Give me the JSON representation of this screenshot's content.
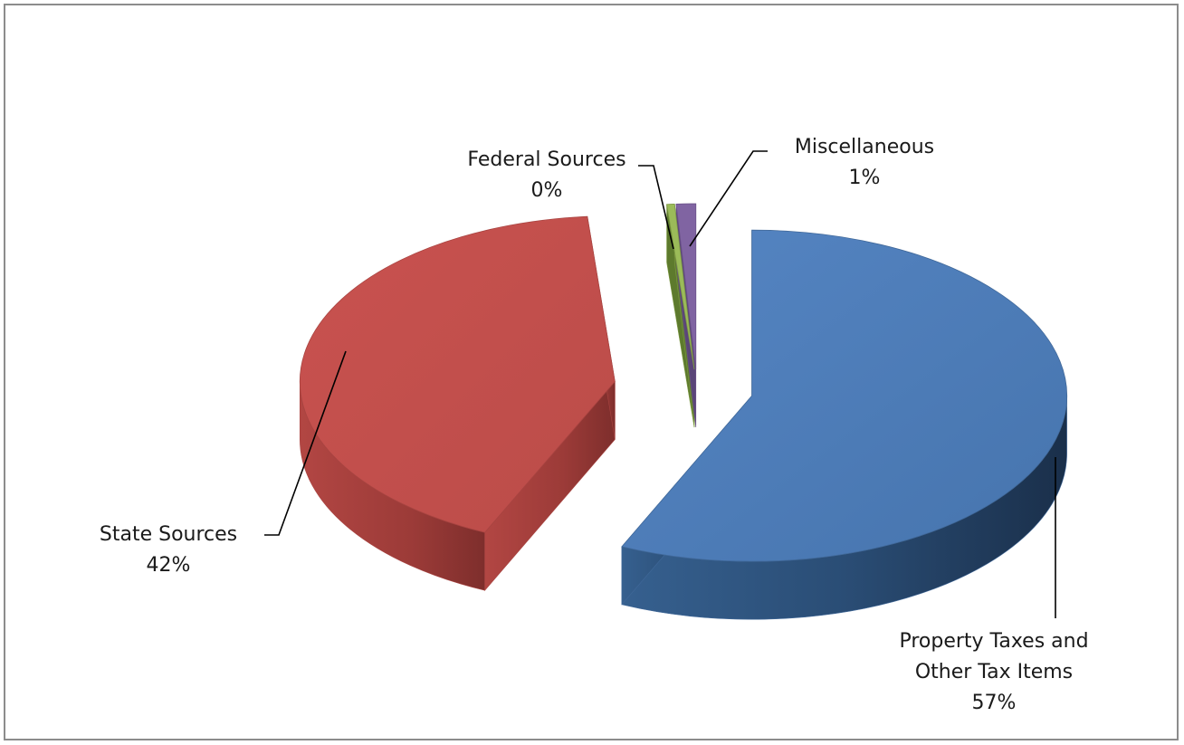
{
  "chart_data": {
    "type": "pie",
    "title": "",
    "slices": [
      {
        "label": "Property Taxes and Other Tax Items",
        "label_lines": [
          "Property Taxes and",
          "Other Tax Items"
        ],
        "percent_label": "57%",
        "value": 57,
        "color": "#4f81bd"
      },
      {
        "label": "State Sources",
        "label_lines": [
          "State Sources"
        ],
        "percent_label": "42%",
        "value": 42,
        "color": "#c0504d"
      },
      {
        "label": "Federal Sources",
        "label_lines": [
          "Federal Sources"
        ],
        "percent_label": "0%",
        "value": 0.4,
        "color": "#9bbb59"
      },
      {
        "label": "Miscellaneous",
        "label_lines": [
          "Miscellaneous"
        ],
        "percent_label": "1%",
        "value": 1,
        "color": "#8064a2"
      }
    ],
    "exploded": true,
    "three_d": true,
    "legend": "none"
  }
}
